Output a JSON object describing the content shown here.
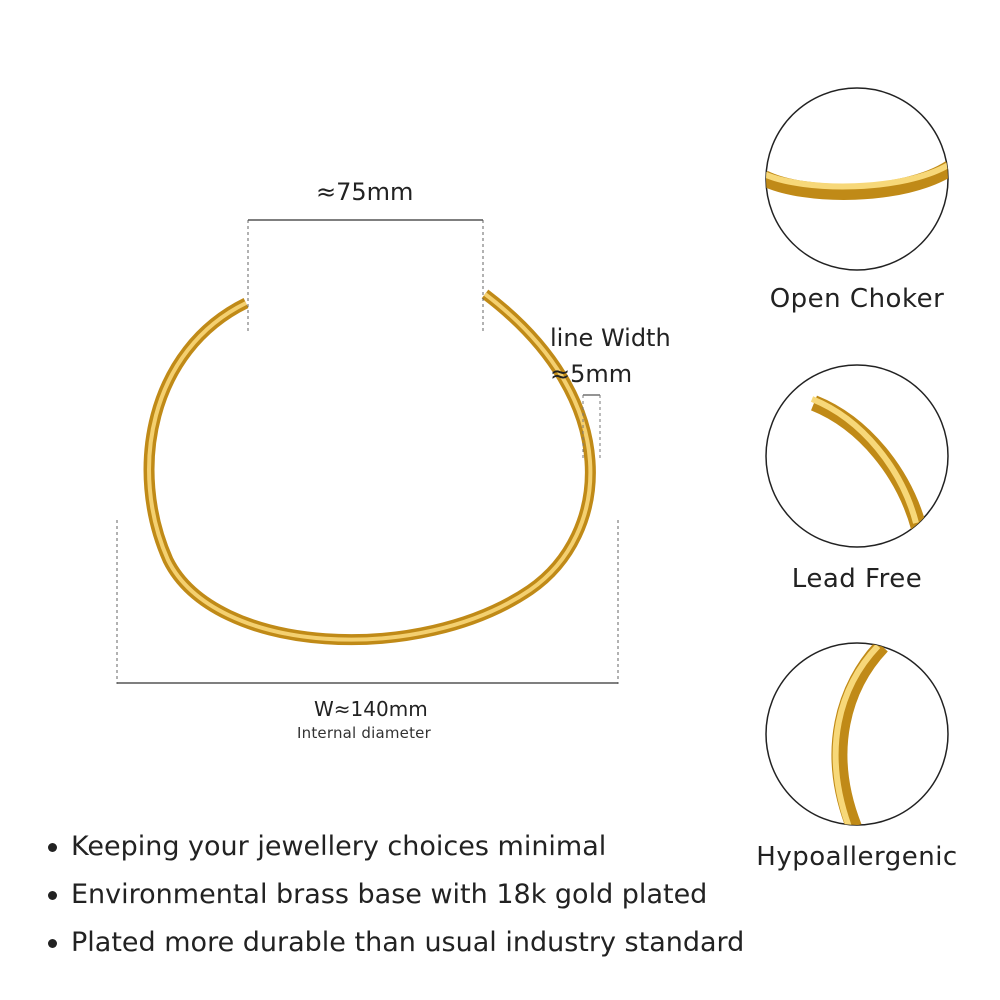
{
  "dimensions": {
    "opening": "≈75mm",
    "line_width_label": "line Width",
    "line_width_value": "≈5mm",
    "width": "W≈140mm",
    "width_note": "Internal diameter"
  },
  "features": [
    {
      "label": "Open Choker"
    },
    {
      "label": "Lead Free"
    },
    {
      "label": "Hypoallergenic"
    }
  ],
  "bullets": [
    "Keeping your jewellery choices minimal",
    "Environmental brass base with 18k gold plated",
    "Plated more durable than usual industry standard"
  ],
  "colors": {
    "gold_dark": "#c9921a",
    "gold_mid": "#e8b32e",
    "gold_light": "#fbe48a",
    "line": "#444444"
  }
}
